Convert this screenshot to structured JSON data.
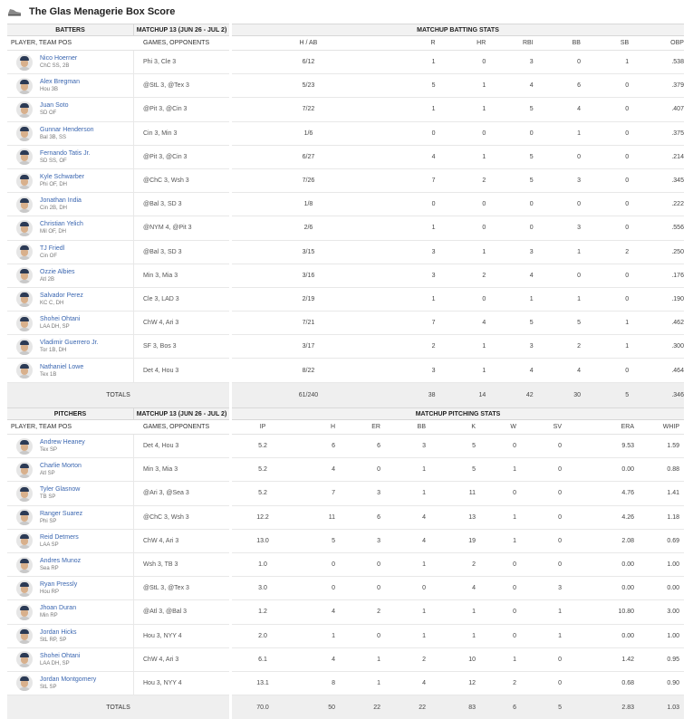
{
  "page": {
    "title": "The Glas Menagerie Box Score",
    "icon": "baseball-shoe-icon"
  },
  "batting": {
    "left_header": "BATTERS",
    "matchup_header": "MATCHUP 13 (JUN 26 - JUL 2)",
    "right_header": "MATCHUP BATTING STATS",
    "col_player": "PLAYER, TEAM POS",
    "col_games": "GAMES, OPPONENTS",
    "stat_cols": [
      "H / AB",
      "R",
      "HR",
      "RBI",
      "BB",
      "SB",
      "OBP"
    ],
    "rows": [
      {
        "name": "Nico Hoerner",
        "team": "ChC SS, 2B",
        "games": "Phi 3, Cle 3",
        "stats": [
          "6/12",
          "1",
          "0",
          "3",
          "0",
          "1",
          ".538"
        ]
      },
      {
        "name": "Alex Bregman",
        "team": "Hou 3B",
        "games": "@StL 3, @Tex 3",
        "stats": [
          "5/23",
          "5",
          "1",
          "4",
          "6",
          "0",
          ".379"
        ]
      },
      {
        "name": "Juan Soto",
        "team": "SD OF",
        "games": "@Pit 3, @Cin 3",
        "stats": [
          "7/22",
          "1",
          "1",
          "5",
          "4",
          "0",
          ".407"
        ]
      },
      {
        "name": "Gunnar Henderson",
        "team": "Bal 3B, SS",
        "games": "Cin 3, Min 3",
        "stats": [
          "1/6",
          "0",
          "0",
          "0",
          "1",
          "0",
          ".375"
        ]
      },
      {
        "name": "Fernando Tatis Jr.",
        "team": "SD SS, OF",
        "games": "@Pit 3, @Cin 3",
        "stats": [
          "6/27",
          "4",
          "1",
          "5",
          "0",
          "0",
          ".214"
        ]
      },
      {
        "name": "Kyle Schwarber",
        "team": "Phi OF, DH",
        "games": "@ChC 3, Wsh 3",
        "stats": [
          "7/26",
          "7",
          "2",
          "5",
          "3",
          "0",
          ".345"
        ]
      },
      {
        "name": "Jonathan India",
        "team": "Cin 2B, DH",
        "games": "@Bal 3, SD 3",
        "stats": [
          "1/8",
          "0",
          "0",
          "0",
          "0",
          "0",
          ".222"
        ]
      },
      {
        "name": "Christian Yelich",
        "team": "Mil OF, DH",
        "games": "@NYM 4, @Pit 3",
        "stats": [
          "2/6",
          "1",
          "0",
          "0",
          "3",
          "0",
          ".556"
        ]
      },
      {
        "name": "TJ Friedl",
        "team": "Cin OF",
        "games": "@Bal 3, SD 3",
        "stats": [
          "3/15",
          "3",
          "1",
          "3",
          "1",
          "2",
          ".250"
        ]
      },
      {
        "name": "Ozzie Albies",
        "team": "Atl 2B",
        "games": "Min 3, Mia 3",
        "stats": [
          "3/16",
          "3",
          "2",
          "4",
          "0",
          "0",
          ".176"
        ]
      },
      {
        "name": "Salvador Perez",
        "team": "KC C, DH",
        "games": "Cle 3, LAD 3",
        "stats": [
          "2/19",
          "1",
          "0",
          "1",
          "1",
          "0",
          ".190"
        ]
      },
      {
        "name": "Shohei Ohtani",
        "team": "LAA DH, SP",
        "games": "ChW 4, Ari 3",
        "stats": [
          "7/21",
          "7",
          "4",
          "5",
          "5",
          "1",
          ".462"
        ]
      },
      {
        "name": "Vladimir Guerrero Jr.",
        "team": "Tor 1B, DH",
        "games": "SF 3, Bos 3",
        "stats": [
          "3/17",
          "2",
          "1",
          "3",
          "2",
          "1",
          ".300"
        ]
      },
      {
        "name": "Nathaniel Lowe",
        "team": "Tex 1B",
        "games": "Det 4, Hou 3",
        "stats": [
          "8/22",
          "3",
          "1",
          "4",
          "4",
          "0",
          ".464"
        ]
      }
    ],
    "totals_label": "TOTALS",
    "totals": [
      "61/240",
      "38",
      "14",
      "42",
      "30",
      "5",
      ".346"
    ]
  },
  "pitching": {
    "left_header": "PITCHERS",
    "matchup_header": "MATCHUP 13 (JUN 26 - JUL 2)",
    "right_header": "MATCHUP PITCHING STATS",
    "col_player": "PLAYER, TEAM POS",
    "col_games": "GAMES, OPPONENTS",
    "stat_cols": [
      "IP",
      "H",
      "ER",
      "BB",
      "K",
      "W",
      "SV",
      "ERA",
      "WHIP"
    ],
    "rows": [
      {
        "name": "Andrew Heaney",
        "team": "Tex SP",
        "games": "Det 4, Hou 3",
        "stats": [
          "5.2",
          "6",
          "6",
          "3",
          "5",
          "0",
          "0",
          "9.53",
          "1.59"
        ]
      },
      {
        "name": "Charlie Morton",
        "team": "Atl SP",
        "games": "Min 3, Mia 3",
        "stats": [
          "5.2",
          "4",
          "0",
          "1",
          "5",
          "1",
          "0",
          "0.00",
          "0.88"
        ]
      },
      {
        "name": "Tyler Glasnow",
        "team": "TB SP",
        "games": "@Ari 3, @Sea 3",
        "stats": [
          "5.2",
          "7",
          "3",
          "1",
          "11",
          "0",
          "0",
          "4.76",
          "1.41"
        ]
      },
      {
        "name": "Ranger Suarez",
        "team": "Phi SP",
        "games": "@ChC 3, Wsh 3",
        "stats": [
          "12.2",
          "11",
          "6",
          "4",
          "13",
          "1",
          "0",
          "4.26",
          "1.18"
        ]
      },
      {
        "name": "Reid Detmers",
        "team": "LAA SP",
        "games": "ChW 4, Ari 3",
        "stats": [
          "13.0",
          "5",
          "3",
          "4",
          "19",
          "1",
          "0",
          "2.08",
          "0.69"
        ]
      },
      {
        "name": "Andres Munoz",
        "team": "Sea RP",
        "games": "Wsh 3, TB 3",
        "stats": [
          "1.0",
          "0",
          "0",
          "1",
          "2",
          "0",
          "0",
          "0.00",
          "1.00"
        ]
      },
      {
        "name": "Ryan Pressly",
        "team": "Hou RP",
        "games": "@StL 3, @Tex 3",
        "stats": [
          "3.0",
          "0",
          "0",
          "0",
          "4",
          "0",
          "3",
          "0.00",
          "0.00"
        ]
      },
      {
        "name": "Jhoan Duran",
        "team": "Min RP",
        "games": "@Atl 3, @Bal 3",
        "stats": [
          "1.2",
          "4",
          "2",
          "1",
          "1",
          "0",
          "1",
          "10.80",
          "3.00"
        ]
      },
      {
        "name": "Jordan Hicks",
        "team": "StL RP, SP",
        "games": "Hou 3, NYY 4",
        "stats": [
          "2.0",
          "1",
          "0",
          "1",
          "1",
          "0",
          "1",
          "0.00",
          "1.00"
        ]
      },
      {
        "name": "Shohei Ohtani",
        "team": "LAA DH, SP",
        "games": "ChW 4, Ari 3",
        "stats": [
          "6.1",
          "4",
          "1",
          "2",
          "10",
          "1",
          "0",
          "1.42",
          "0.95"
        ]
      },
      {
        "name": "Jordan Montgomery",
        "team": "StL SP",
        "games": "Hou 3, NYY 4",
        "stats": [
          "13.1",
          "8",
          "1",
          "4",
          "12",
          "2",
          "0",
          "0.68",
          "0.90"
        ]
      }
    ],
    "totals_label": "TOTALS",
    "totals": [
      "70.0",
      "50",
      "22",
      "22",
      "83",
      "6",
      "5",
      "2.83",
      "1.03"
    ]
  }
}
